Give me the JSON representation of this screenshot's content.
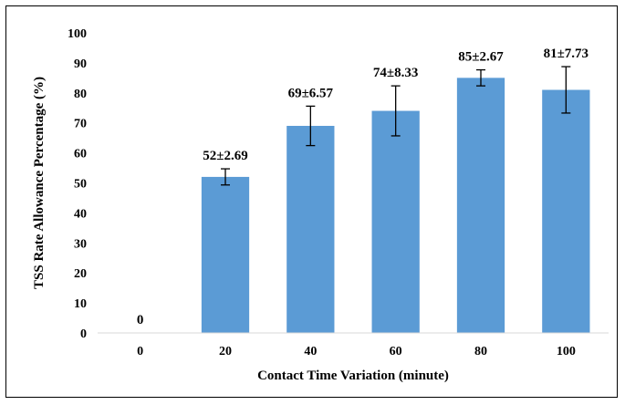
{
  "chart_data": {
    "type": "bar",
    "title": "",
    "xlabel": "Contact Time Variation (minute)",
    "ylabel": "TSS  Rate Allowance Percentage (%)",
    "categories": [
      "0",
      "20",
      "40",
      "60",
      "80",
      "100"
    ],
    "values": [
      0,
      52,
      69,
      74,
      85,
      81
    ],
    "errors": [
      0,
      2.69,
      6.57,
      8.33,
      2.67,
      7.73
    ],
    "data_labels": [
      "0",
      "52±2.69",
      "69±6.57",
      "74±8.33",
      "85±2.67",
      "81±7.73"
    ],
    "ylim": [
      0,
      100
    ],
    "yticks": [
      "0",
      "10",
      "20",
      "30",
      "40",
      "50",
      "60",
      "70",
      "80",
      "90",
      "100"
    ],
    "grid": false,
    "legend": "none",
    "colors": {
      "bar": "#5b9bd5",
      "axis": "#d9d9d9",
      "error_bar": "#000000"
    }
  }
}
